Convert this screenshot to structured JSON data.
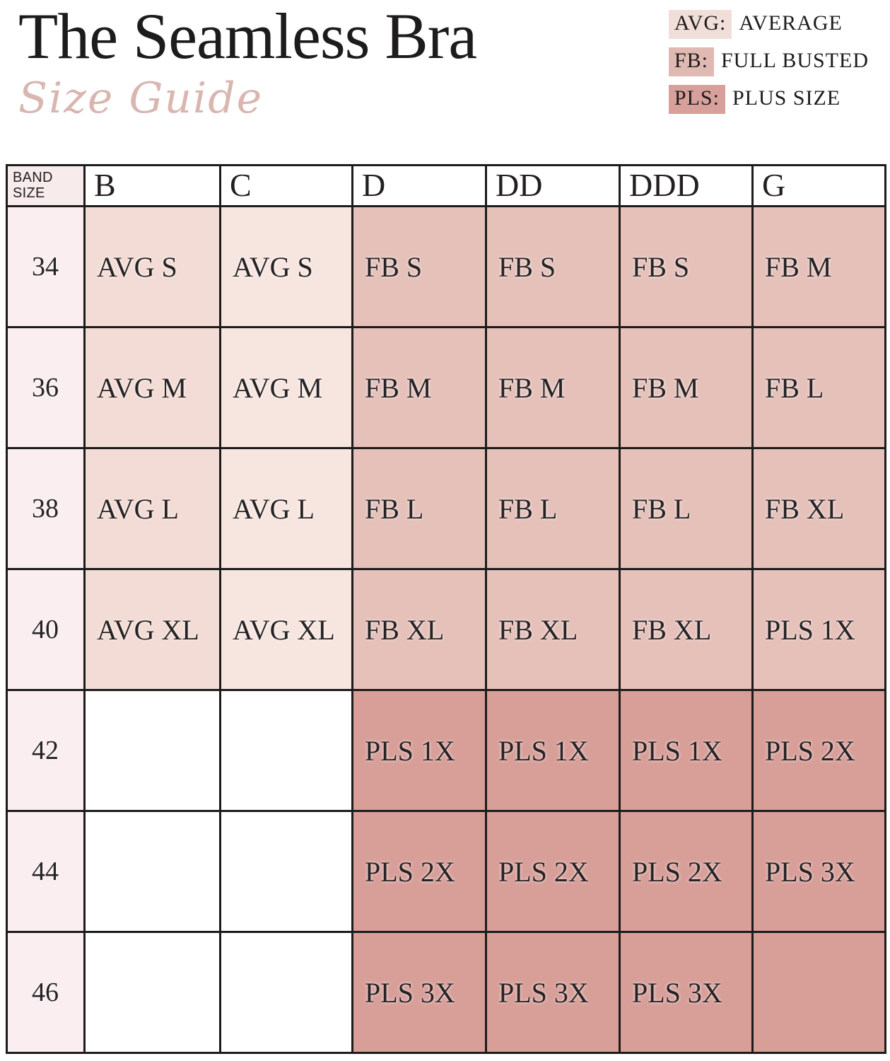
{
  "header": {
    "title": "The Seamless Bra",
    "subtitle": "Size Guide"
  },
  "legend": {
    "items": [
      {
        "abbr": "AVG:",
        "label": "AVERAGE",
        "swatch": "legend_avg"
      },
      {
        "abbr": "FB:",
        "label": "FULL BUSTED",
        "swatch": "legend_fb"
      },
      {
        "abbr": "PLS:",
        "label": "PLUS SIZE",
        "swatch": "legend_pls"
      }
    ]
  },
  "table": {
    "corner_header": "BAND SIZE",
    "column_headers": [
      "B",
      "C",
      "D",
      "DD",
      "DDD",
      "G"
    ],
    "rows": [
      {
        "band": "34",
        "cells": [
          {
            "label": "AVG S",
            "color": "avg_b"
          },
          {
            "label": "AVG S",
            "color": "avg_c"
          },
          {
            "label": "FB S",
            "color": "fb"
          },
          {
            "label": "FB S",
            "color": "fb"
          },
          {
            "label": "FB S",
            "color": "fb"
          },
          {
            "label": "FB M",
            "color": "fb"
          }
        ]
      },
      {
        "band": "36",
        "cells": [
          {
            "label": "AVG M",
            "color": "avg_b"
          },
          {
            "label": "AVG M",
            "color": "avg_c"
          },
          {
            "label": "FB M",
            "color": "fb"
          },
          {
            "label": "FB M",
            "color": "fb"
          },
          {
            "label": "FB M",
            "color": "fb"
          },
          {
            "label": "FB L",
            "color": "fb"
          }
        ]
      },
      {
        "band": "38",
        "cells": [
          {
            "label": "AVG L",
            "color": "avg_b"
          },
          {
            "label": "AVG L",
            "color": "avg_c"
          },
          {
            "label": "FB L",
            "color": "fb"
          },
          {
            "label": "FB L",
            "color": "fb"
          },
          {
            "label": "FB L",
            "color": "fb"
          },
          {
            "label": "FB XL",
            "color": "fb"
          }
        ]
      },
      {
        "band": "40",
        "cells": [
          {
            "label": "AVG XL",
            "color": "avg_b"
          },
          {
            "label": "AVG XL",
            "color": "avg_c"
          },
          {
            "label": "FB XL",
            "color": "fb"
          },
          {
            "label": "FB XL",
            "color": "fb"
          },
          {
            "label": "FB XL",
            "color": "fb"
          },
          {
            "label": "PLS 1X",
            "color": "fb"
          }
        ]
      },
      {
        "band": "42",
        "cells": [
          {
            "label": "",
            "color": "white"
          },
          {
            "label": "",
            "color": "white"
          },
          {
            "label": "PLS 1X",
            "color": "pls"
          },
          {
            "label": "PLS 1X",
            "color": "pls"
          },
          {
            "label": "PLS 1X",
            "color": "pls"
          },
          {
            "label": "PLS 2X",
            "color": "pls"
          }
        ]
      },
      {
        "band": "44",
        "cells": [
          {
            "label": "",
            "color": "white"
          },
          {
            "label": "",
            "color": "white"
          },
          {
            "label": "PLS 2X",
            "color": "pls"
          },
          {
            "label": "PLS 2X",
            "color": "pls"
          },
          {
            "label": "PLS 2X",
            "color": "pls"
          },
          {
            "label": "PLS 3X",
            "color": "pls"
          }
        ]
      },
      {
        "band": "46",
        "cells": [
          {
            "label": "",
            "color": "white"
          },
          {
            "label": "",
            "color": "white"
          },
          {
            "label": "PLS 3X",
            "color": "pls"
          },
          {
            "label": "PLS 3X",
            "color": "pls"
          },
          {
            "label": "PLS 3X",
            "color": "pls"
          },
          {
            "label": "",
            "color": "pls"
          }
        ]
      }
    ]
  },
  "colors": {
    "avg_b": "#f3dcd5",
    "avg_c": "#f7e6e0",
    "fb": "#e5c1ba",
    "pls": "#d89f99",
    "white": "#ffffff",
    "band_column": "#faeef0",
    "corner_header_bg": "#f7ebec",
    "legend_avg": "#f2ded9",
    "legend_fb": "#e0b9b2",
    "legend_pls": "#d7a09a",
    "title_color": "#1d1b1c",
    "subtitle_color": "#d9b6b0",
    "border": "#1c1c1c"
  },
  "chart_data": {
    "type": "table",
    "title": "The Seamless Bra Size Guide",
    "columns": [
      "BAND SIZE",
      "B",
      "C",
      "D",
      "DD",
      "DDD",
      "G"
    ],
    "rows": [
      [
        "34",
        "AVG S",
        "AVG S",
        "FB S",
        "FB S",
        "FB S",
        "FB M"
      ],
      [
        "36",
        "AVG M",
        "AVG M",
        "FB M",
        "FB M",
        "FB M",
        "FB L"
      ],
      [
        "38",
        "AVG L",
        "AVG L",
        "FB L",
        "FB L",
        "FB L",
        "FB XL"
      ],
      [
        "40",
        "AVG XL",
        "AVG XL",
        "FB XL",
        "FB XL",
        "FB XL",
        "PLS 1X"
      ],
      [
        "42",
        "",
        "",
        "PLS 1X",
        "PLS 1X",
        "PLS 1X",
        "PLS 2X"
      ],
      [
        "44",
        "",
        "",
        "PLS 2X",
        "PLS 2X",
        "PLS 2X",
        "PLS 3X"
      ],
      [
        "46",
        "",
        "",
        "PLS 3X",
        "PLS 3X",
        "PLS 3X",
        ""
      ]
    ],
    "legend": [
      "AVG: AVERAGE",
      "FB: FULL BUSTED",
      "PLS: PLUS SIZE"
    ],
    "layout": "grid with black borders; cell fill encodes category (AVG light pink, FB medium rose, PLS dark rose); legend top-right"
  }
}
